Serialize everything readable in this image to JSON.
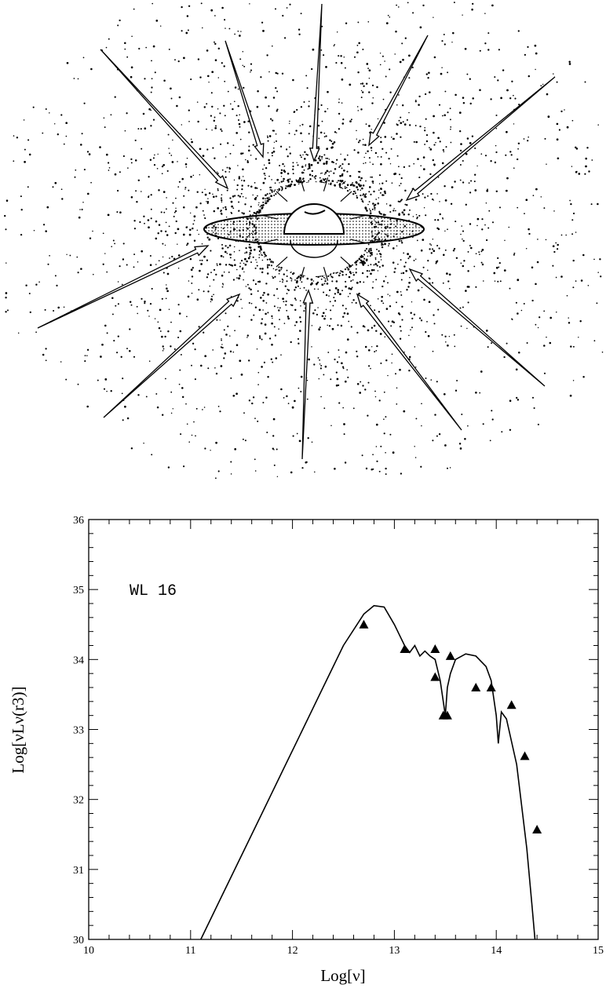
{
  "chart_data": {
    "type": "line",
    "annotation": "WL 16",
    "xlabel": "Log[ν]",
    "ylabel": "Log[νLν(r3)]",
    "xlim": [
      10,
      15
    ],
    "xticks": [
      10,
      11,
      12,
      13,
      14,
      15
    ],
    "ylim": [
      30,
      36
    ],
    "yticks": [
      30,
      31,
      32,
      33,
      34,
      35,
      36
    ],
    "series": [
      {
        "color": "#000000",
        "x": [
          11.1,
          11.3,
          11.5,
          11.7,
          11.9,
          12.1,
          12.3,
          12.5,
          12.7,
          12.8,
          12.9,
          13.0,
          13.1,
          13.15,
          13.2,
          13.25,
          13.3,
          13.35,
          13.4,
          13.45,
          13.5,
          13.52,
          13.55,
          13.6,
          13.7,
          13.8,
          13.9,
          13.95,
          14.0,
          14.02,
          14.05,
          14.1,
          14.2,
          14.3,
          14.35,
          14.38
        ],
        "values": [
          30.0,
          30.6,
          31.2,
          31.8,
          32.4,
          33.0,
          33.6,
          34.2,
          34.65,
          34.77,
          34.75,
          34.5,
          34.2,
          34.1,
          34.2,
          34.05,
          34.12,
          34.05,
          34.0,
          33.7,
          33.2,
          33.6,
          33.8,
          34.0,
          34.08,
          34.05,
          33.9,
          33.7,
          33.2,
          32.8,
          33.25,
          33.15,
          32.5,
          31.3,
          30.5,
          30.0
        ]
      },
      {
        "color": "#000000",
        "marker": "triangle",
        "x": [
          12.7,
          13.1,
          13.4,
          13.4,
          13.48,
          13.52,
          13.55,
          13.8,
          13.95,
          14.15,
          14.28,
          14.4
        ],
        "values": [
          34.5,
          34.15,
          34.15,
          33.75,
          33.2,
          33.2,
          34.05,
          33.6,
          33.6,
          33.35,
          32.62,
          31.57
        ]
      }
    ]
  }
}
